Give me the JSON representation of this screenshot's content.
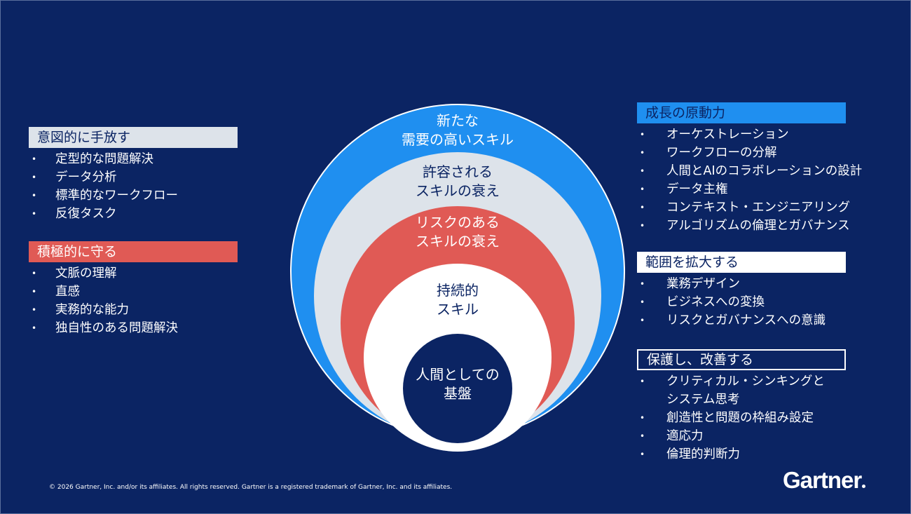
{
  "left_sections": [
    {
      "header": "意図的に手放す",
      "items": [
        "定型的な問題解決",
        "データ分析",
        "標準的なワークフロー",
        "反復タスク"
      ]
    },
    {
      "header": "積極的に守る",
      "items": [
        "文脈の理解",
        "直感",
        "実務的な能力",
        "独自性のある問題解決"
      ]
    }
  ],
  "circles": [
    {
      "label": "新たな\n需要の高いスキル",
      "color": "#1f8ff0"
    },
    {
      "label": "許容される\nスキルの衰え",
      "color": "#dde3ea"
    },
    {
      "label": "リスクのある\nスキルの衰え",
      "color": "#e05a55"
    },
    {
      "label": "持続的\nスキル",
      "color": "#ffffff"
    },
    {
      "label": "人間としての\n基盤",
      "color": "#0b2463"
    }
  ],
  "right_sections": [
    {
      "header": "成長の原動力",
      "items": [
        "オーケストレーション",
        "ワークフローの分解",
        "人間とAIのコラボレーションの設計",
        "データ主権",
        "コンテキスト・エンジニアリング",
        "アルゴリズムの倫理とガバナンス"
      ]
    },
    {
      "header": "範囲を拡大する",
      "items": [
        "業務デザイン",
        "ビジネスへの変換",
        "リスクとガバナンスへの意識"
      ]
    },
    {
      "header": "保護し、改善する",
      "items": [
        "クリティカル・シンキングと",
        "システム思考",
        "創造性と問題の枠組み設定",
        "適応力",
        "倫理的判断力"
      ]
    }
  ],
  "footer": "© 2026 Gartner, Inc. and/or its affiliates. All rights reserved. Gartner is a registered trademark of Gartner, Inc. and its affiliates.",
  "logo": "Gartner"
}
